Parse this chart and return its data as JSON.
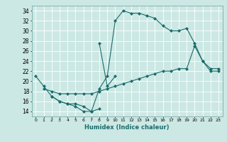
{
  "xlabel": "Humidex (Indice chaleur)",
  "xlim": [
    -0.5,
    23.5
  ],
  "ylim": [
    13,
    35
  ],
  "yticks": [
    14,
    16,
    18,
    20,
    22,
    24,
    26,
    28,
    30,
    32,
    34
  ],
  "xticks": [
    0,
    1,
    2,
    3,
    4,
    5,
    6,
    7,
    8,
    9,
    10,
    11,
    12,
    13,
    14,
    15,
    16,
    17,
    18,
    19,
    20,
    21,
    22,
    23
  ],
  "bg_color": "#cce8e4",
  "grid_color": "#b0d8d2",
  "line_color": "#1a6b6b",
  "line1_x": [
    0,
    1,
    2,
    3,
    4,
    5,
    6,
    7,
    8
  ],
  "line1_y": [
    21,
    19,
    17,
    16,
    15.5,
    15,
    14,
    14,
    14.5
  ],
  "line2_x": [
    8,
    9,
    10
  ],
  "line2_y": [
    27.5,
    19,
    21
  ],
  "line3_x": [
    2,
    3,
    4,
    5,
    6,
    7,
    8,
    9,
    10,
    11,
    12,
    13,
    14,
    15,
    16,
    17,
    18,
    19,
    20,
    21,
    22,
    23
  ],
  "line3_y": [
    17,
    16,
    15.5,
    15.5,
    15,
    14,
    18.5,
    21,
    32,
    34,
    33.5,
    33.5,
    33,
    32.5,
    31,
    30,
    30,
    30.5,
    27.5,
    24,
    22,
    22
  ],
  "line4_x": [
    1,
    2,
    3,
    4,
    5,
    6,
    7,
    8,
    9,
    10,
    11,
    12,
    13,
    14,
    15,
    16,
    17,
    18,
    19,
    20,
    21,
    22,
    23
  ],
  "line4_y": [
    18.5,
    18,
    17.5,
    17.5,
    17.5,
    17.5,
    17.5,
    18,
    18.5,
    19,
    19.5,
    20,
    20.5,
    21,
    21.5,
    22,
    22,
    22.5,
    22.5,
    27,
    24,
    22.5,
    22.5
  ]
}
